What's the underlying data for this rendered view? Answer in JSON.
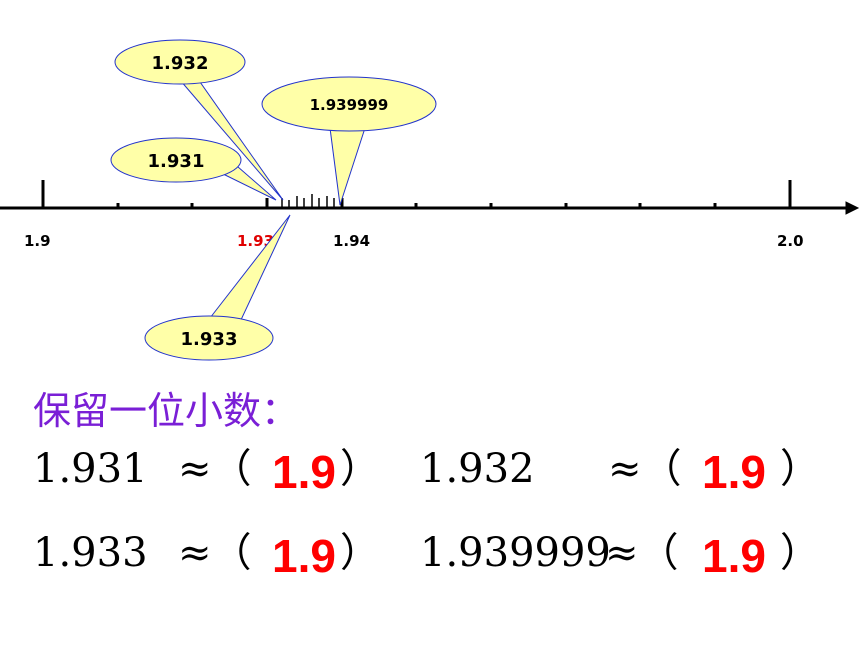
{
  "callouts": [
    {
      "label": "1.932"
    },
    {
      "label": "1.939999"
    },
    {
      "label": "1.931"
    },
    {
      "label": "1.933"
    }
  ],
  "axis": {
    "labels": [
      "1.9",
      "1.93",
      "1.94",
      "2.0"
    ]
  },
  "heading": "保留一位小数：",
  "rows": [
    [
      {
        "number": "1.931",
        "approx": "≈（",
        "answer": "1.9",
        "close": "）"
      },
      {
        "number": "1.932",
        "approx": "≈（",
        "answer": "1.9",
        "close": "）"
      }
    ],
    [
      {
        "number": "1.933",
        "approx": "≈（",
        "answer": "1.9",
        "close": "）"
      },
      {
        "number": "1.939999",
        "approx": "≈（",
        "answer": "1.9",
        "close": "）"
      }
    ]
  ]
}
